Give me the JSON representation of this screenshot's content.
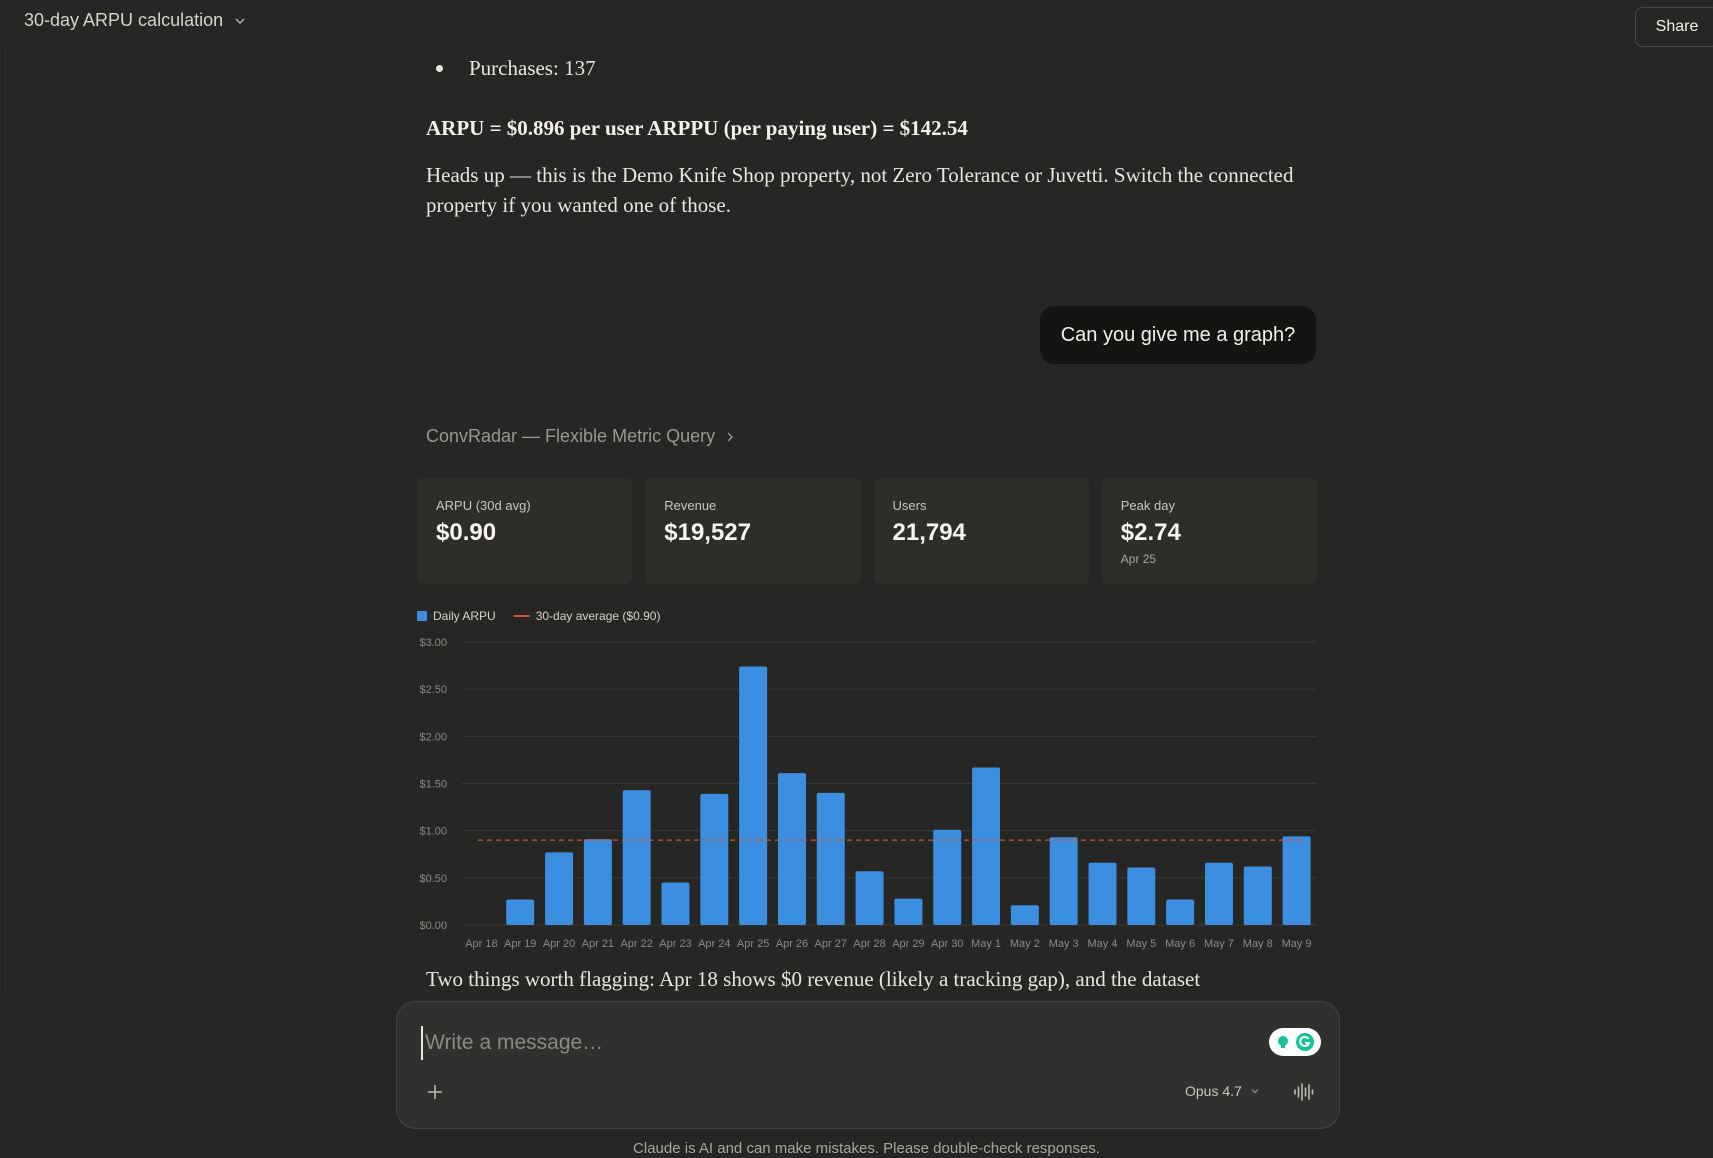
{
  "header": {
    "title": "30-day ARPU calculation",
    "share_label": "Share"
  },
  "assistant_prev": {
    "bullet": "Purchases: 137",
    "arpu_line": "ARPU = $0.896 per user ARPPU (per paying user) = $142.54",
    "heads_up": "Heads up — this is the Demo Knife Shop property, not Zero Tolerance or Juvetti. Switch the connected property if you wanted one of those."
  },
  "user_message": "Can you give me a graph?",
  "tool": {
    "label": "ConvRadar — Flexible Metric Query"
  },
  "stats": [
    {
      "label": "ARPU (30d avg)",
      "value": "$0.90",
      "sub": ""
    },
    {
      "label": "Revenue",
      "value": "$19,527",
      "sub": ""
    },
    {
      "label": "Users",
      "value": "21,794",
      "sub": ""
    },
    {
      "label": "Peak day",
      "value": "$2.74",
      "sub": "Apr 25"
    }
  ],
  "legend": {
    "series_label": "Daily ARPU",
    "avg_label": "30-day average ($0.90)"
  },
  "colors": {
    "bar": "#3b8ee0",
    "avg_line": "#d9532e",
    "grid": "#3a3936",
    "tick": "#8d8a83"
  },
  "chart_data": {
    "type": "bar",
    "categories": [
      "Apr 18",
      "Apr 19",
      "Apr 20",
      "Apr 21",
      "Apr 22",
      "Apr 23",
      "Apr 24",
      "Apr 25",
      "Apr 26",
      "Apr 27",
      "Apr 28",
      "Apr 29",
      "Apr 30",
      "May 1",
      "May 2",
      "May 3",
      "May 4",
      "May 5",
      "May 6",
      "May 7",
      "May 8",
      "May 9"
    ],
    "series": [
      {
        "name": "Daily ARPU",
        "values": [
          0,
          0.27,
          0.77,
          0.91,
          1.43,
          0.45,
          1.39,
          2.74,
          1.61,
          1.4,
          0.57,
          0.28,
          1.01,
          1.67,
          0.21,
          0.93,
          0.66,
          0.61,
          0.27,
          0.66,
          0.62,
          0.94
        ]
      }
    ],
    "reference_line": {
      "name": "30-day average ($0.90)",
      "value": 0.9
    },
    "y_ticks": [
      "$0.00",
      "$0.50",
      "$1.00",
      "$1.50",
      "$2.00",
      "$2.50",
      "$3.00"
    ],
    "ylim": [
      0,
      3
    ],
    "grid": true,
    "legend_position": "top-left",
    "title": "",
    "xlabel": "",
    "ylabel": ""
  },
  "assistant_after": {
    "text": "Two things worth flagging: Apr 18 shows $0 revenue (likely a tracking gap), and the dataset"
  },
  "composer": {
    "placeholder": "Write a message…",
    "model": "Opus 4.7"
  },
  "footer": "Claude is AI and can make mistakes. Please double-check responses."
}
